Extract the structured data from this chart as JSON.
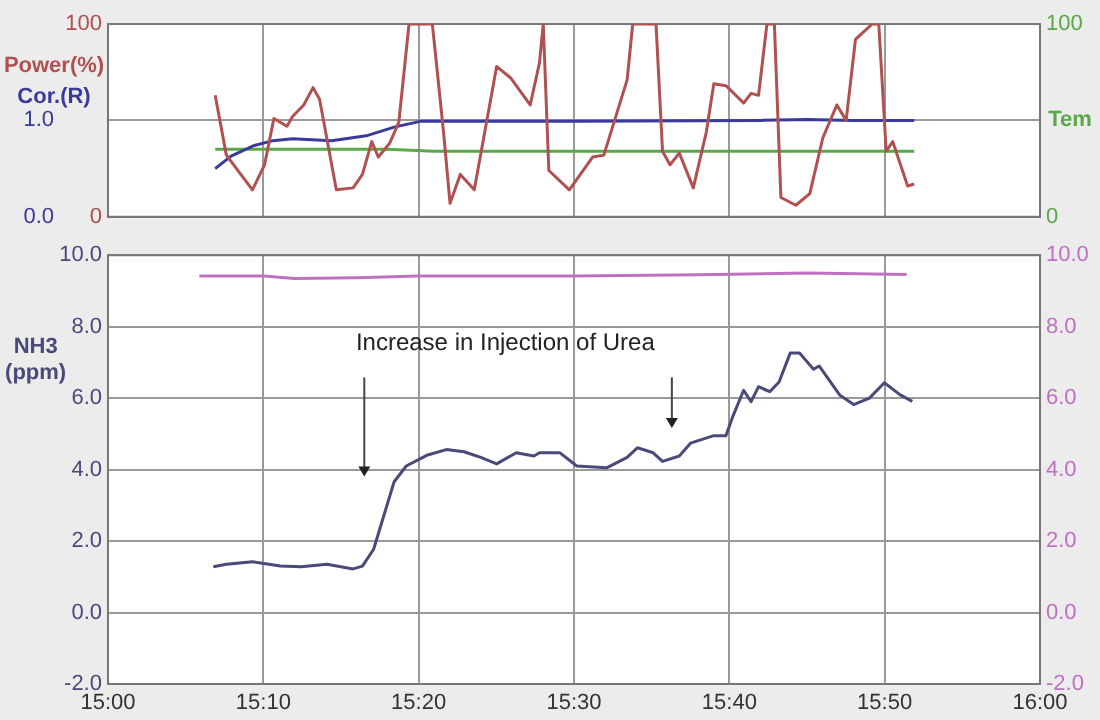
{
  "chart_data": [
    {
      "type": "line",
      "ylabel": "Power(%)",
      "y3label": "Cor.(R)",
      "y2label": "Tem",
      "tick_labels": "y",
      "grid": true,
      "xlim": [
        15,
        16
      ],
      "xticks": [
        {
          "value": 15,
          "label": null
        },
        {
          "value": 15.1667,
          "label": null
        },
        {
          "value": 15.3333,
          "label": null
        },
        {
          "value": 15.5,
          "label": null
        },
        {
          "value": 15.6667,
          "label": null
        },
        {
          "value": 15.8333,
          "label": null
        },
        {
          "value": 16,
          "label": null
        }
      ],
      "ylim": [
        0,
        100
      ],
      "yticks": [
        0,
        100
      ],
      "y3lim": [
        0,
        2
      ],
      "y3ticks": [
        {
          "value": 0,
          "label": "0.0"
        },
        {
          "value": 1,
          "label": "1.0"
        }
      ],
      "y2lim": [
        0,
        100
      ],
      "y2ticks": [
        0,
        100
      ],
      "series": [
        {
          "color": "#b05050",
          "x": [
            15.115,
            15.127,
            15.155,
            15.168,
            15.178,
            15.192,
            15.198,
            15.21,
            15.22,
            15.227,
            15.245,
            15.263,
            15.273,
            15.283,
            15.29,
            15.302,
            15.312,
            15.323,
            15.348,
            15.36,
            15.367,
            15.378,
            15.393,
            15.417,
            15.432,
            15.453,
            15.463,
            15.467,
            15.473,
            15.495,
            15.52,
            15.532,
            15.557,
            15.563,
            15.588,
            15.595,
            15.603,
            15.613,
            15.628,
            15.642,
            15.65,
            15.663,
            15.682,
            15.69,
            15.698,
            15.707,
            15.715,
            15.722,
            15.738,
            15.753,
            15.767,
            15.782,
            15.792,
            15.802,
            15.82,
            15.827,
            15.835,
            15.842,
            15.858,
            15.865
          ],
          "values": [
            63,
            32,
            14,
            27,
            51,
            47,
            52,
            58,
            67,
            61,
            14,
            15,
            22,
            39,
            31,
            38,
            49,
            100,
            100,
            44,
            7,
            22,
            14,
            78,
            72,
            58,
            80,
            100,
            24,
            14,
            31,
            32,
            71,
            100,
            100,
            34,
            27,
            33,
            15,
            44,
            69,
            68,
            59,
            64,
            63,
            100,
            100,
            10,
            6,
            12,
            41,
            58,
            50,
            92,
            100,
            100,
            34,
            39,
            16,
            17
          ]
        },
        {
          "color": "#3a3a9a",
          "axis": "y3",
          "x": [
            15.115,
            15.132,
            15.157,
            15.177,
            15.198,
            15.24,
            15.277,
            15.307,
            15.335,
            15.5,
            15.7,
            15.75,
            15.8,
            15.865
          ],
          "values": [
            0.5,
            0.63,
            0.74,
            0.79,
            0.81,
            0.79,
            0.84,
            0.93,
            0.99,
            0.99,
            1.0,
            1.01,
            1.0,
            1.0
          ]
        },
        {
          "color": "#5aa84a",
          "axis": "y2",
          "x": [
            15.115,
            15.3,
            15.35,
            15.5,
            15.7,
            15.865
          ],
          "values": [
            35,
            35,
            34,
            34,
            34,
            34
          ]
        }
      ]
    },
    {
      "type": "line",
      "ylabel": "NH3 (ppm)",
      "grid": true,
      "annotations": [
        "Increase in Injection of Urea"
      ],
      "xlim": [
        15,
        16
      ],
      "xticks": [
        {
          "value": 15,
          "label": "15:00"
        },
        {
          "value": 15.1667,
          "label": "15:10"
        },
        {
          "value": 15.3333,
          "label": "15:20"
        },
        {
          "value": 15.5,
          "label": "15:30"
        },
        {
          "value": 15.6667,
          "label": "15:40"
        },
        {
          "value": 15.8333,
          "label": "15:50"
        },
        {
          "value": 16,
          "label": "16:00"
        }
      ],
      "ylim": [
        -2,
        10
      ],
      "yticks": [
        {
          "value": -2,
          "label": "-2.0"
        },
        {
          "value": 0,
          "label": "0.0"
        },
        {
          "value": 2,
          "label": "2.0"
        },
        {
          "value": 4,
          "label": "4.0"
        },
        {
          "value": 6,
          "label": "6.0"
        },
        {
          "value": 8,
          "label": "8.0"
        },
        {
          "value": 10,
          "label": "10.0"
        }
      ],
      "y2lim": [
        -2,
        10
      ],
      "y2ticks": [
        {
          "value": -2,
          "label": "-2.0"
        },
        {
          "value": 0,
          "label": "0.0"
        },
        {
          "value": 2,
          "label": "2.0"
        },
        {
          "value": 4,
          "label": "4.0"
        },
        {
          "value": 6,
          "label": "6.0"
        },
        {
          "value": 8,
          "label": "8.0"
        },
        {
          "value": 10,
          "label": "10.0"
        }
      ],
      "series": [
        {
          "color": "#4a4a7a",
          "x": [
            15.113,
            15.127,
            15.155,
            15.185,
            15.207,
            15.235,
            15.263,
            15.273,
            15.285,
            15.307,
            15.32,
            15.342,
            15.363,
            15.382,
            15.4,
            15.417,
            15.438,
            15.457,
            15.463,
            15.485,
            15.503,
            15.535,
            15.557,
            15.568,
            15.585,
            15.595,
            15.613,
            15.625,
            15.65,
            15.663,
            15.67,
            15.682,
            15.69,
            15.698,
            15.71,
            15.72,
            15.732,
            15.742,
            15.757,
            15.763,
            15.785,
            15.8,
            15.817,
            15.833,
            15.85,
            15.863
          ],
          "values": [
            1.28,
            1.35,
            1.42,
            1.3,
            1.28,
            1.35,
            1.22,
            1.3,
            1.77,
            3.66,
            4.1,
            4.4,
            4.56,
            4.5,
            4.34,
            4.16,
            4.47,
            4.38,
            4.47,
            4.47,
            4.1,
            4.05,
            4.34,
            4.61,
            4.47,
            4.23,
            4.38,
            4.74,
            4.95,
            4.95,
            5.46,
            6.22,
            5.9,
            6.32,
            6.18,
            6.45,
            7.26,
            7.26,
            6.81,
            6.9,
            6.09,
            5.82,
            6.0,
            6.43,
            6.09,
            5.91
          ]
        },
        {
          "color": "#c070c0",
          "axis": "y2",
          "x": [
            15.098,
            15.167,
            15.2,
            15.267,
            15.333,
            15.5,
            15.633,
            15.75,
            15.857
          ],
          "values": [
            9.42,
            9.42,
            9.35,
            9.37,
            9.42,
            9.42,
            9.45,
            9.5,
            9.46
          ]
        }
      ]
    }
  ]
}
